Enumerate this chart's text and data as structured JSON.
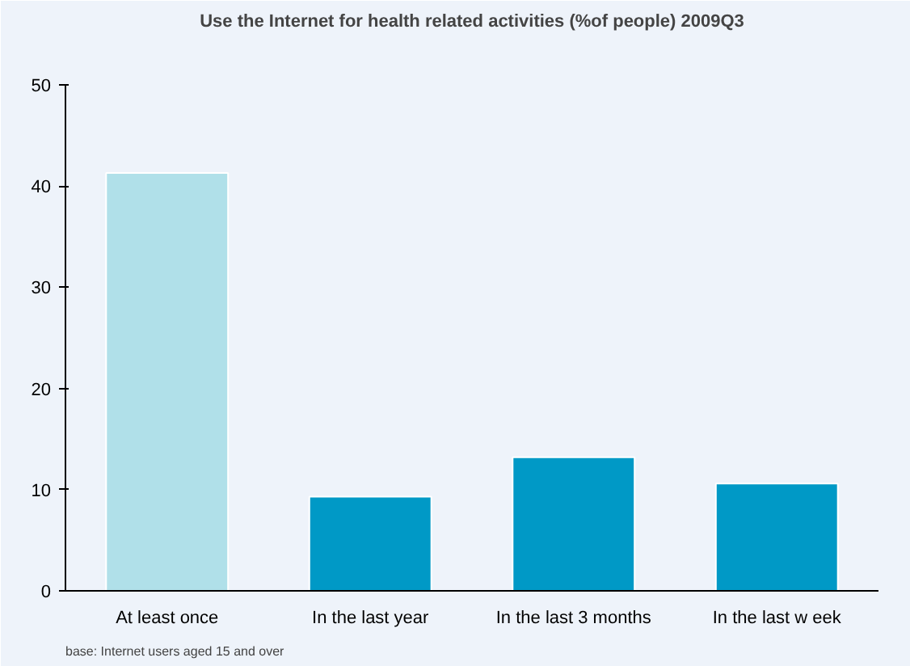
{
  "chart_data": {
    "type": "bar",
    "title": "Use the Internet for health related activities (%of people) 2009Q3",
    "categories": [
      "At least once",
      "In the last year",
      "In the last 3 months",
      "In the last w eek"
    ],
    "values": [
      41.3,
      9.3,
      13.2,
      10.6
    ],
    "colors": [
      "#b0e0e9",
      "#0099c6",
      "#0099c6",
      "#0099c6"
    ],
    "ylim": [
      0,
      50
    ],
    "yticks": [
      0,
      10,
      20,
      30,
      40,
      50
    ],
    "grid": false,
    "annotations": [
      "base: Internet users aged 15 and over"
    ]
  }
}
